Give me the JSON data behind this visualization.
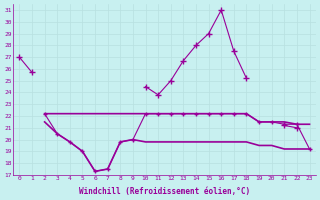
{
  "xlabel": "Windchill (Refroidissement éolien,°C)",
  "bg_color": "#c8f0f0",
  "line_color": "#990099",
  "grid_color": "#b8e0e0",
  "hours": [
    0,
    1,
    2,
    3,
    4,
    5,
    6,
    7,
    8,
    9,
    10,
    11,
    12,
    13,
    14,
    15,
    16,
    17,
    18,
    19,
    20,
    21,
    22,
    23
  ],
  "line1": [
    27,
    25.7,
    null,
    null,
    null,
    null,
    null,
    null,
    null,
    null,
    24.5,
    23.8,
    25.0,
    26.7,
    28.0,
    29.0,
    31.0,
    27.5,
    25.2,
    null,
    null,
    21.2,
    21.0,
    null
  ],
  "line2": [
    27,
    25.7,
    null,
    null,
    null,
    null,
    null,
    null,
    null,
    null,
    24.5,
    23.8,
    25.0,
    26.7,
    28.0,
    29.0,
    31.0,
    27.5,
    25.2,
    null,
    null,
    21.2,
    21.0,
    null
  ],
  "line_upper": [
    null,
    null,
    22.2,
    22.2,
    22.2,
    22.2,
    22.2,
    22.2,
    22.2,
    22.2,
    22.2,
    22.2,
    22.2,
    22.2,
    22.2,
    22.2,
    22.2,
    22.2,
    22.2,
    21.5,
    21.5,
    21.5,
    21.3,
    21.3
  ],
  "line_mid": [
    null,
    null,
    22.2,
    20.5,
    19.8,
    19.0,
    17.3,
    17.5,
    19.8,
    20.0,
    22.2,
    22.2,
    22.2,
    22.2,
    22.2,
    22.2,
    22.2,
    22.2,
    22.2,
    21.5,
    21.5,
    21.3,
    21.3,
    19.2
  ],
  "line_lower": [
    null,
    null,
    21.5,
    20.5,
    19.8,
    19.0,
    17.3,
    17.5,
    19.8,
    20.0,
    19.8,
    19.8,
    19.8,
    19.8,
    19.8,
    19.8,
    19.8,
    19.8,
    19.8,
    19.5,
    19.5,
    19.2,
    19.2,
    19.2
  ],
  "ylim": [
    17,
    31.5
  ],
  "yticks": [
    17,
    18,
    19,
    20,
    21,
    22,
    23,
    24,
    25,
    26,
    27,
    28,
    29,
    30,
    31
  ]
}
